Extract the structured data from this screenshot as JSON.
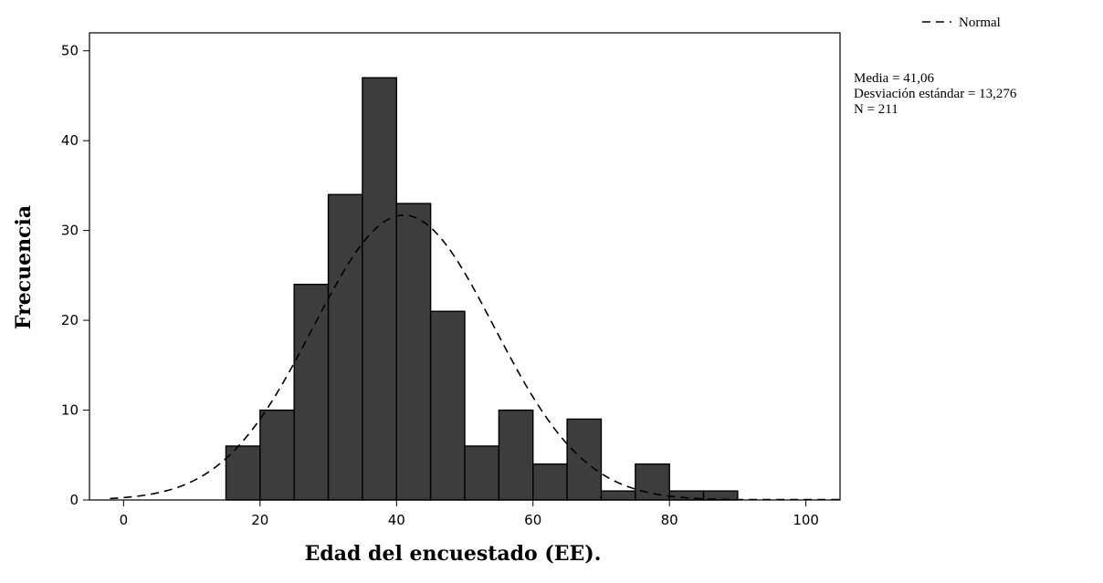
{
  "chart_data": {
    "type": "bar",
    "subtype": "histogram",
    "xlabel": "Edad del encuestado (EE).",
    "ylabel": "Frecuencia",
    "xlim": [
      -5,
      105
    ],
    "ylim": [
      0,
      52
    ],
    "xticks": [
      0,
      20,
      40,
      60,
      80,
      100
    ],
    "yticks": [
      0,
      10,
      20,
      30,
      40,
      50
    ],
    "bin_width": 5,
    "bins": [
      {
        "start": 15,
        "end": 20,
        "value": 6
      },
      {
        "start": 20,
        "end": 25,
        "value": 10
      },
      {
        "start": 25,
        "end": 30,
        "value": 24
      },
      {
        "start": 30,
        "end": 35,
        "value": 34
      },
      {
        "start": 35,
        "end": 40,
        "value": 47
      },
      {
        "start": 40,
        "end": 45,
        "value": 33
      },
      {
        "start": 45,
        "end": 50,
        "value": 21
      },
      {
        "start": 50,
        "end": 55,
        "value": 6
      },
      {
        "start": 55,
        "end": 60,
        "value": 10
      },
      {
        "start": 60,
        "end": 65,
        "value": 4
      },
      {
        "start": 65,
        "end": 70,
        "value": 9
      },
      {
        "start": 70,
        "end": 75,
        "value": 1
      },
      {
        "start": 75,
        "end": 80,
        "value": 4
      },
      {
        "start": 80,
        "end": 85,
        "value": 1
      },
      {
        "start": 85,
        "end": 90,
        "value": 1
      }
    ],
    "normal_curve": {
      "mean": 41.06,
      "sd": 13.276,
      "n": 211
    },
    "legend": {
      "label": "Normal",
      "position": "top-right"
    },
    "stats_lines": [
      "Media = 41,06",
      "Desviación estándar = 13,276",
      "N = 211"
    ],
    "bar_color": "#3d3d3d",
    "grid": false
  }
}
